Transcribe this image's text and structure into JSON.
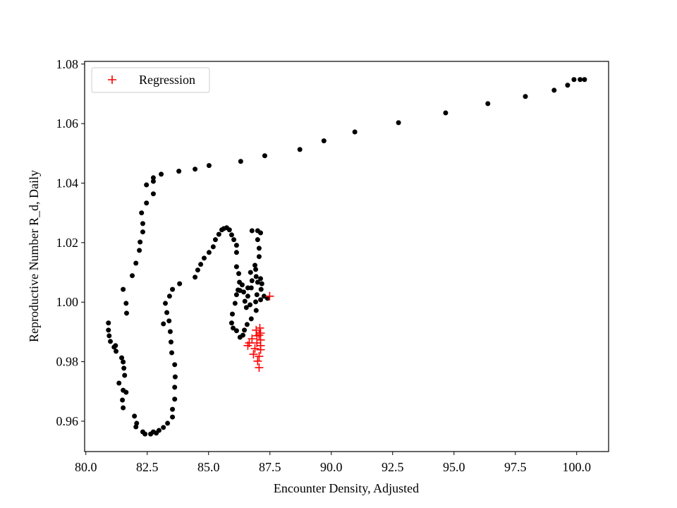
{
  "chart_data": {
    "type": "scatter",
    "xlabel": "Encounter Density, Adjusted",
    "ylabel": "Reproductive Number R_d, Daily",
    "xlim": [
      79.95,
      101.3
    ],
    "ylim": [
      0.9498,
      1.0809
    ],
    "xticks": [
      {
        "value": 80,
        "label": "80.0"
      },
      82.5,
      {
        "value": 85,
        "label": "85.0"
      },
      87.5,
      {
        "value": 90,
        "label": "90.0"
      },
      92.5,
      {
        "value": 95,
        "label": "95.0"
      },
      97.5,
      {
        "value": 100,
        "label": "100.0"
      }
    ],
    "yticks": [
      0.96,
      0.98,
      {
        "value": 1,
        "label": "1.00"
      },
      1.02,
      1.04,
      1.06,
      1.08
    ],
    "legend": "upper left",
    "series": [
      {
        "color": "#000000",
        "marker": "o",
        "x": [
          100.14,
          100.32,
          99.89,
          99.63,
          99.08,
          97.91,
          96.38,
          94.66,
          92.74,
          90.96,
          89.7,
          88.72,
          87.29,
          86.31,
          85.02,
          84.45,
          83.79,
          83.07,
          82.75,
          82.75,
          82.75,
          82.47,
          82.47,
          82.27,
          82.32,
          82.32,
          82.21,
          82.18,
          82.04,
          81.89,
          81.52,
          81.64,
          81.66,
          80.92,
          80.92,
          80.95,
          81.0,
          81.15,
          81.23,
          81.21,
          81.35,
          81.52,
          81.49,
          81.52,
          81.46,
          81.52,
          81.55,
          81.58,
          81.64,
          81.98,
          82.07,
          82.04,
          82.32,
          82.41,
          82.64,
          82.75,
          82.87,
          82.98,
          83.16,
          83.33,
          83.53,
          83.53,
          83.62,
          83.62,
          83.64,
          83.62,
          83.5,
          83.47,
          83.44,
          83.39,
          83.3,
          83.24,
          83.16,
          83.41,
          83.53,
          83.82,
          84.45,
          84.56,
          84.68,
          84.82,
          85.02,
          85.19,
          85.28,
          85.42,
          85.54,
          85.62,
          85.74,
          85.85,
          85.94,
          86.03,
          86.14,
          86.14,
          86.14,
          86.23,
          86.26,
          86.2,
          86.14,
          86.08,
          85.97,
          85.94,
          86.0,
          86.14,
          86.28,
          86.77,
          87.0,
          87.12,
          87.0,
          87.06,
          87.06,
          86.89,
          86.71,
          86.77,
          87.0,
          87.14,
          86.97,
          86.92,
          86.94,
          86.74,
          86.57,
          86.46,
          86.4,
          86.54,
          86.48,
          86.6,
          86.74,
          86.92,
          86.94,
          87.12,
          87.17,
          87.26,
          87.12,
          86.37,
          86.28,
          86.43,
          86.6,
          86.69,
          87.4
        ],
        "y": [
          1.0748,
          1.0748,
          1.0748,
          1.0729,
          1.0712,
          1.0691,
          1.0667,
          1.0636,
          1.0603,
          1.0572,
          1.0542,
          1.0513,
          1.0492,
          1.0473,
          1.0459,
          1.0447,
          1.044,
          1.043,
          1.0418,
          1.0406,
          1.0364,
          1.0394,
          1.0333,
          1.03,
          1.0264,
          1.0236,
          1.0202,
          1.0174,
          1.0131,
          1.0089,
          1.0043,
          0.9996,
          0.9963,
          0.993,
          0.9906,
          0.9887,
          0.9868,
          0.9849,
          0.9835,
          0.9854,
          0.9728,
          0.9704,
          0.9671,
          0.9645,
          0.9813,
          0.9799,
          0.9778,
          0.9754,
          0.9697,
          0.9617,
          0.9593,
          0.9581,
          0.9564,
          0.9557,
          0.9557,
          0.9564,
          0.956,
          0.9569,
          0.9579,
          0.9593,
          0.9614,
          0.964,
          0.9674,
          0.9714,
          0.9749,
          0.979,
          0.983,
          0.9866,
          0.9901,
          0.9937,
          0.9965,
          0.9996,
          0.9927,
          1.002,
          1.0043,
          1.0062,
          1.0084,
          1.0108,
          1.0127,
          1.0148,
          1.0167,
          1.0186,
          1.021,
          1.0228,
          1.0243,
          1.0247,
          1.025,
          1.0243,
          1.0226,
          1.021,
          1.0191,
          1.0167,
          1.0119,
          1.0096,
          1.0067,
          1.0041,
          1.0025,
          0.9996,
          0.996,
          0.993,
          0.9913,
          0.9904,
          0.9882,
          1.024,
          1.024,
          1.0233,
          1.021,
          1.0181,
          1.0153,
          1.0124,
          1.01,
          1.0072,
          1.0067,
          1.0043,
          1.0025,
          1.0001,
          0.9972,
          0.9944,
          0.9925,
          0.9906,
          0.9889,
          0.9982,
          1.0003,
          1.002,
          1.0048,
          1.011,
          1.0086,
          1.0079,
          1.0062,
          1.002,
          1.0008,
          1.0058,
          1.0039,
          1.0034,
          1.0048,
          0.9991,
          1.0013
        ]
      },
      {
        "name": "Regression",
        "color": "#ff0000",
        "marker": "+",
        "x": [
          87.49,
          87.09,
          86.94,
          87.12,
          86.97,
          86.77,
          87.12,
          86.66,
          86.97,
          86.6,
          87.12,
          86.89,
          87.12,
          86.83,
          87.06,
          87.06,
          87.0,
          87.06
        ],
        "y": [
          1.002,
          0.9913,
          0.9906,
          0.9896,
          0.9887,
          0.9877,
          0.9873,
          0.9863,
          0.9863,
          0.9854,
          0.9854,
          0.9844,
          0.984,
          0.9825,
          0.9818,
          0.978,
          0.9802,
          0.9889
        ]
      }
    ]
  }
}
